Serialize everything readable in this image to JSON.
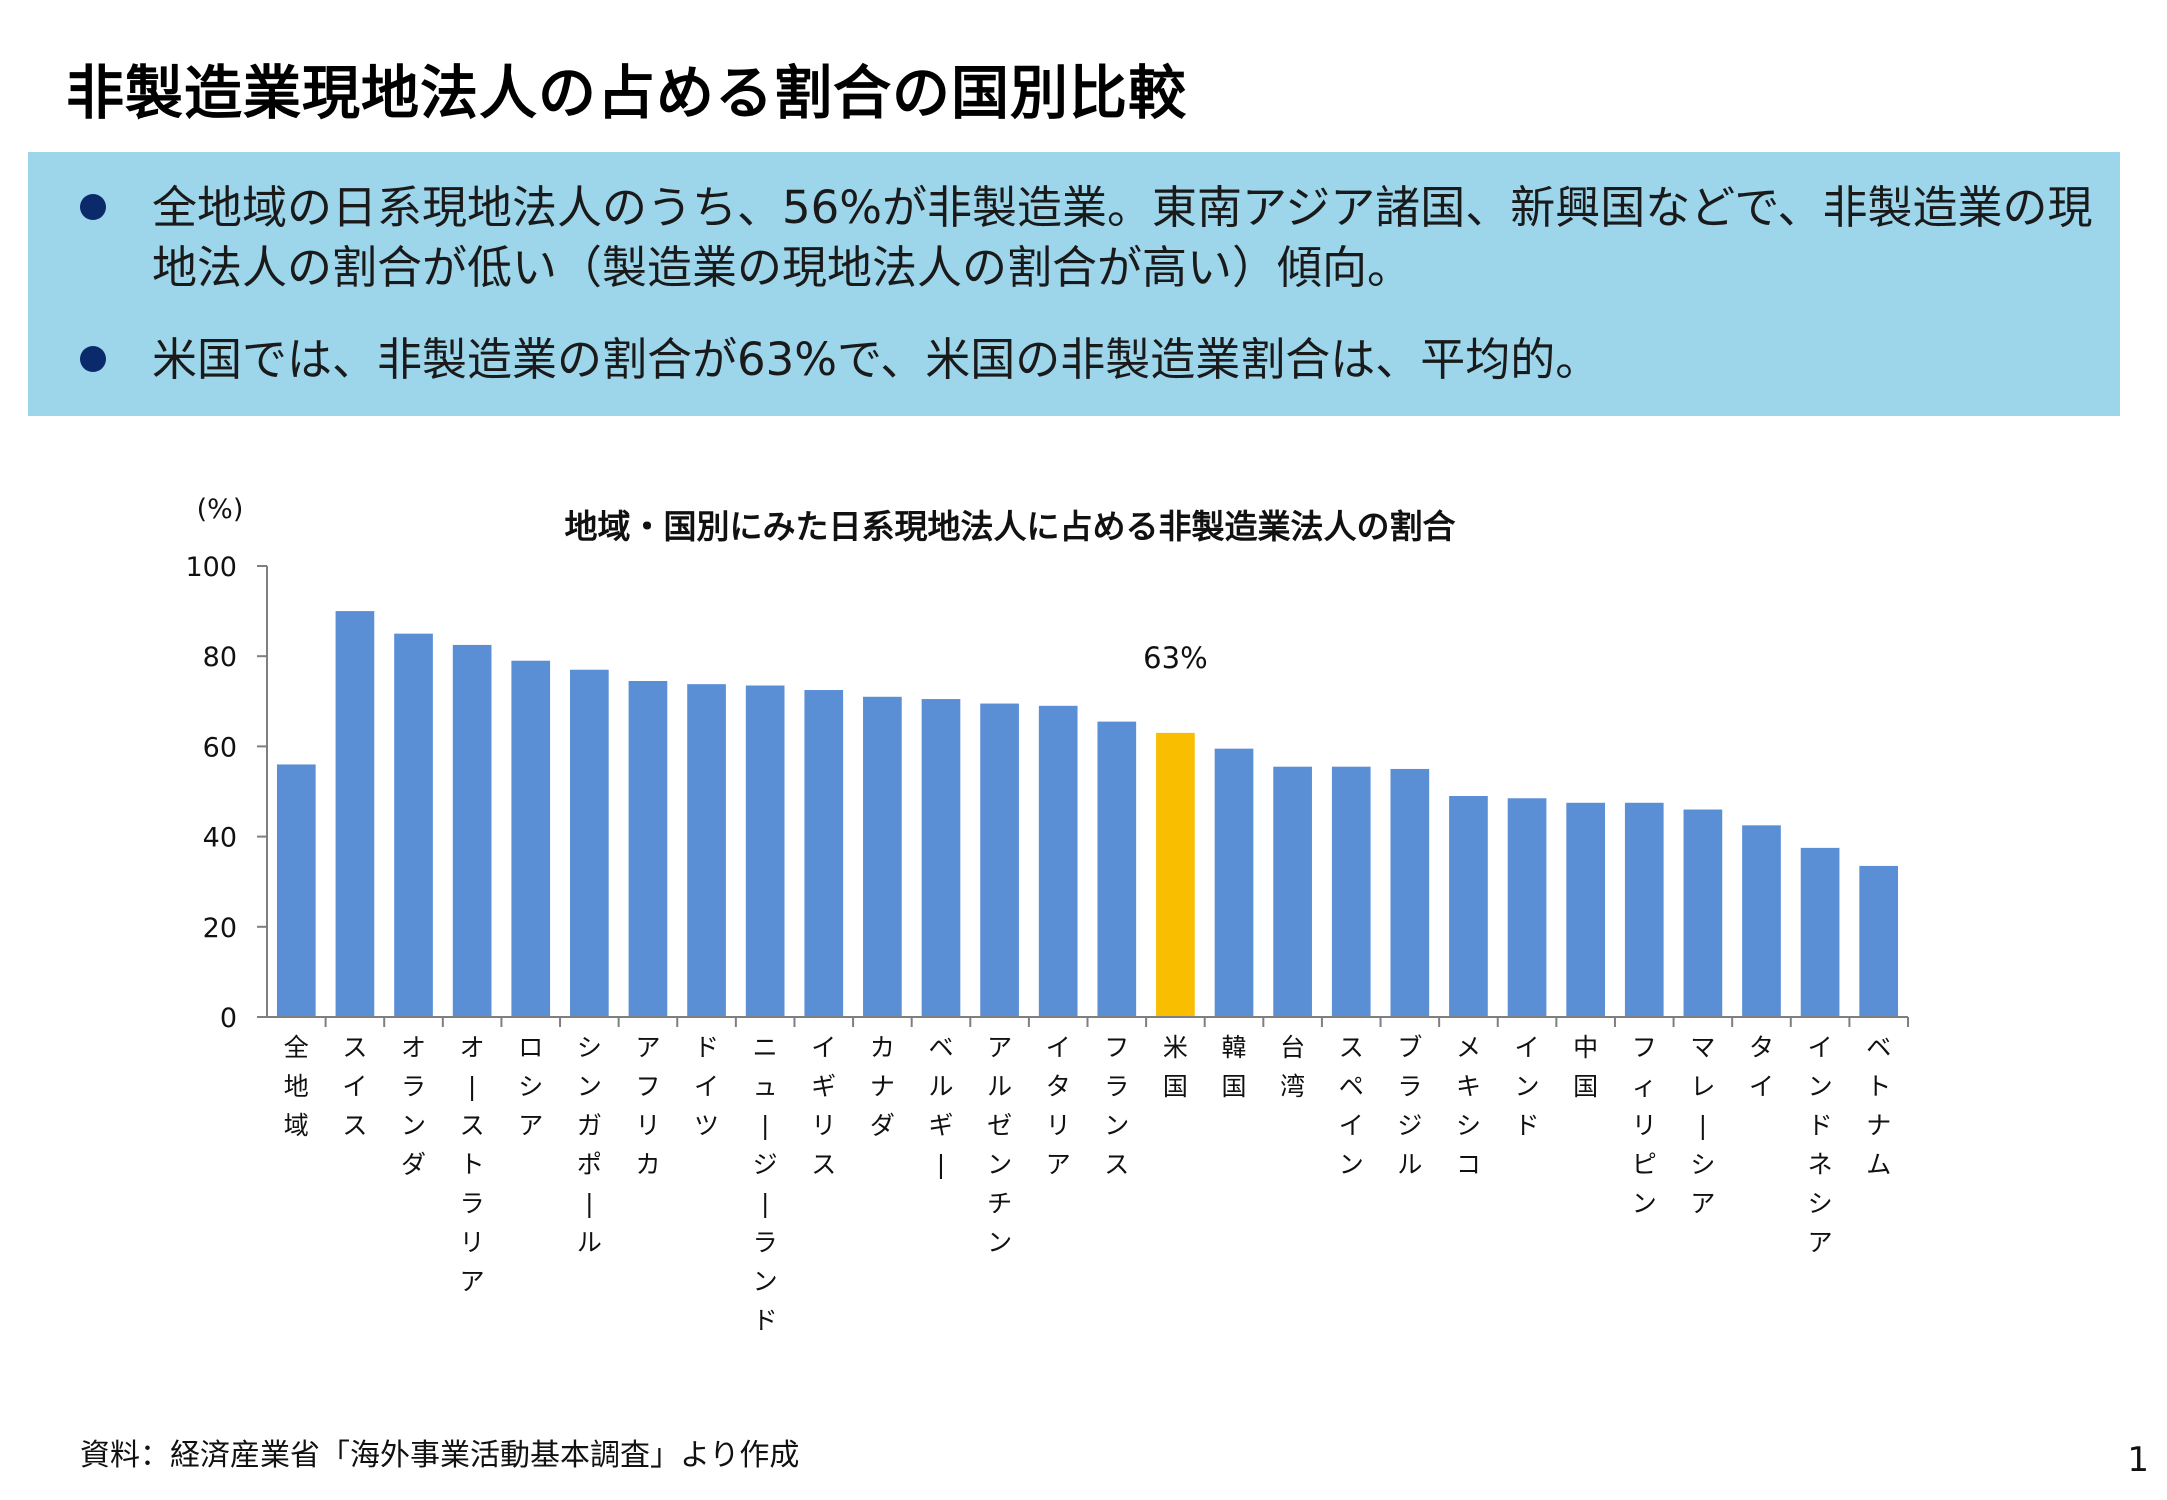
{
  "slide": {
    "title": "非製造業現地法人の占める割合の国別比較",
    "bullets": [
      "全地域の日系現地法人のうち、56%が非製造業。東南アジア諸国、新興国などで、非製造業の現地法人の割合が低い（製造業の現地法人の割合が高い）傾向。",
      "米国では、非製造業の割合が63%で、米国の非製造業割合は、平均的。"
    ],
    "source": "資料：経済産業省「海外事業活動基本調査」より作成",
    "page_number": "1"
  },
  "chart_data": {
    "type": "bar",
    "title": "地域・国別にみた日系現地法人に占める非製造業法人の割合",
    "ylabel": "(%)",
    "ylim": [
      0,
      100
    ],
    "yticks": [
      "0",
      "20",
      "40",
      "60",
      "80",
      "100"
    ],
    "grid": false,
    "categories": [
      "全地域",
      "スイス",
      "オランダ",
      "オーストラリア",
      "ロシア",
      "シンガポール",
      "アフリカ",
      "ドイツ",
      "ニュージーランド",
      "イギリス",
      "カナダ",
      "ベルギー",
      "アルゼンチン",
      "イタリア",
      "フランス",
      "米国",
      "韓国",
      "台湾",
      "スペイン",
      "ブラジル",
      "メキシコ",
      "インド",
      "中国",
      "フィリピン",
      "マレーシア",
      "タイ",
      "インドネシア",
      "ベトナム"
    ],
    "values": [
      56,
      90,
      85,
      82.5,
      79,
      77,
      74.5,
      73.8,
      73.5,
      72.5,
      71,
      70.5,
      69.5,
      69,
      65.5,
      63,
      59.5,
      55.5,
      55.5,
      55,
      49,
      48.5,
      47.5,
      47.5,
      46,
      42.5,
      37.5,
      33.5
    ],
    "highlight_category": "米国",
    "highlight_label": "63%",
    "colors": {
      "bar": "#5a8fd6",
      "highlight": "#f9be00",
      "axis": "#7f7f7f"
    }
  }
}
